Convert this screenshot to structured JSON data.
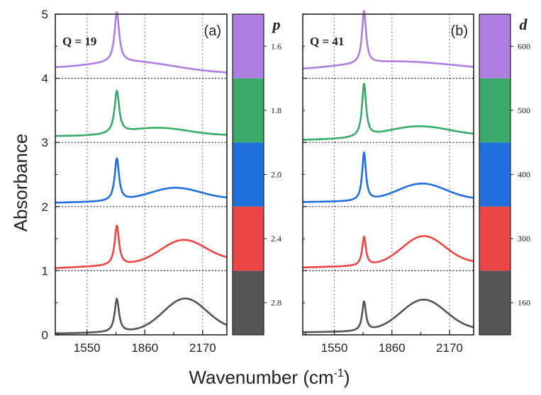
{
  "chart_data": [
    {
      "type": "line",
      "panel": "(a)",
      "param_label": "Q = 19",
      "xlabel": "Wavenumber (cm-1)",
      "ylabel": "Absorbance",
      "xlim": [
        1380,
        2300
      ],
      "ylim": [
        0,
        5
      ],
      "xticks": [
        1550,
        1860,
        2170
      ],
      "yticks": [
        0,
        1,
        2,
        3,
        4,
        5
      ],
      "grid_x": [
        1550,
        1860,
        2170
      ],
      "baselines": [
        1,
        2,
        3,
        4
      ],
      "series": [
        {
          "name": "2.8",
          "offset": 0,
          "color": "#555555",
          "sharp": {
            "center": 1710,
            "width": 14,
            "height": 0.52
          },
          "broad": {
            "center": 2075,
            "width": 115,
            "height": 0.5
          },
          "start": 0.02,
          "end": 0.08
        },
        {
          "name": "2.4",
          "offset": 1,
          "color": "#ec4545",
          "sharp": {
            "center": 1710,
            "width": 14,
            "height": 0.62
          },
          "broad": {
            "center": 2065,
            "width": 120,
            "height": 0.35
          },
          "start": 0.04,
          "end": 0.16
        },
        {
          "name": "2.0",
          "offset": 2,
          "color": "#1f6fde",
          "sharp": {
            "center": 1710,
            "width": 14,
            "height": 0.66
          },
          "broad": {
            "center": 2020,
            "width": 135,
            "height": 0.19
          },
          "start": 0.06,
          "end": 0.12
        },
        {
          "name": "1.8",
          "offset": 3,
          "color": "#3aaa6a",
          "sharp": {
            "center": 1710,
            "width": 15,
            "height": 0.66
          },
          "broad": {
            "center": 1930,
            "width": 160,
            "height": 0.12
          },
          "start": 0.1,
          "end": 0.11
        },
        {
          "name": "1.6",
          "offset": 4,
          "color": "#b07ee0",
          "sharp": {
            "center": 1710,
            "width": 15,
            "height": 0.78
          },
          "broad": {
            "center": 1800,
            "width": 220,
            "height": 0.14
          },
          "start": 0.15,
          "end": 0.08
        }
      ],
      "colorbar": {
        "title": "p",
        "labels": [
          "2.8",
          "2.4",
          "2.0",
          "1.8",
          "1.6"
        ],
        "colors": [
          "#555555",
          "#ec4545",
          "#1f6fde",
          "#3aaa6a",
          "#b07ee0"
        ]
      }
    },
    {
      "type": "line",
      "panel": "(b)",
      "param_label": "Q = 41",
      "xlabel": "Wavenumber (cm-1)",
      "ylabel": "Absorbance",
      "xlim": [
        1380,
        2300
      ],
      "ylim": [
        0,
        5
      ],
      "xticks": [
        1550,
        1860,
        2170
      ],
      "yticks": [
        0,
        1,
        2,
        3,
        4,
        5
      ],
      "grid_x": [
        1550,
        1860,
        2170
      ],
      "baselines": [
        1,
        2,
        3,
        4
      ],
      "series": [
        {
          "name": "160",
          "offset": 0,
          "color": "#555555",
          "sharp": {
            "center": 1710,
            "width": 12,
            "height": 0.46
          },
          "broad": {
            "center": 2030,
            "width": 120,
            "height": 0.48
          },
          "start": 0.04,
          "end": 0.08
        },
        {
          "name": "300",
          "offset": 1,
          "color": "#ec4545",
          "sharp": {
            "center": 1710,
            "width": 12,
            "height": 0.45
          },
          "broad": {
            "center": 2030,
            "width": 115,
            "height": 0.44
          },
          "start": 0.05,
          "end": 0.12
        },
        {
          "name": "400",
          "offset": 2,
          "color": "#1f6fde",
          "sharp": {
            "center": 1710,
            "width": 12,
            "height": 0.75
          },
          "broad": {
            "center": 2020,
            "width": 130,
            "height": 0.26
          },
          "start": 0.07,
          "end": 0.11
        },
        {
          "name": "500",
          "offset": 3,
          "color": "#3aaa6a",
          "sharp": {
            "center": 1710,
            "width": 13,
            "height": 0.82
          },
          "broad": {
            "center": 2000,
            "width": 170,
            "height": 0.17
          },
          "start": 0.04,
          "end": 0.1
        },
        {
          "name": "600",
          "offset": 4,
          "color": "#b07ee0",
          "sharp": {
            "center": 1710,
            "width": 13,
            "height": 0.82
          },
          "broad": {
            "center": 1900,
            "width": 300,
            "height": 0.14
          },
          "start": 0.12,
          "end": 0.12
        }
      ],
      "colorbar": {
        "title": "d",
        "labels": [
          "160",
          "300",
          "400",
          "500",
          "600"
        ],
        "colors": [
          "#555555",
          "#ec4545",
          "#1f6fde",
          "#3aaa6a",
          "#b07ee0"
        ]
      }
    }
  ]
}
